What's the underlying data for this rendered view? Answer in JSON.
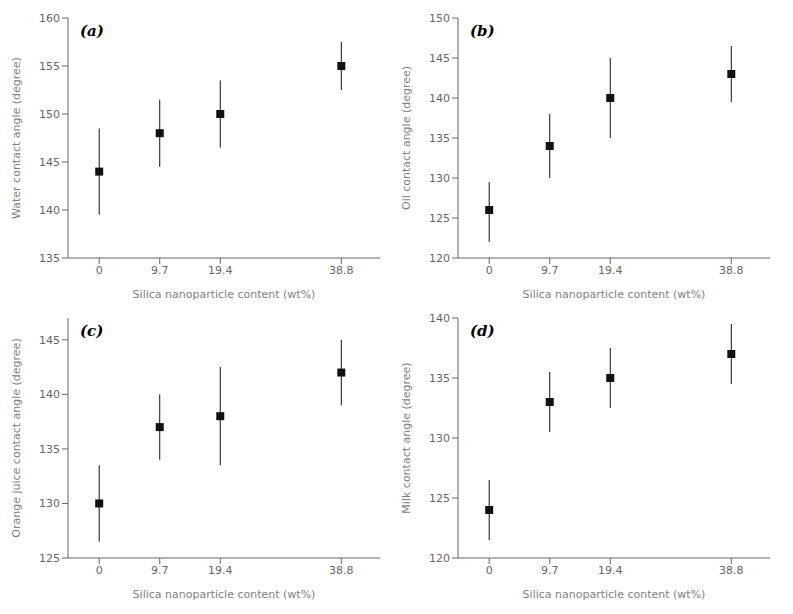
{
  "chart_data": [
    {
      "type": "scatter",
      "title": "(a)",
      "xlabel": "Silica nanoparticle content (wt%)",
      "ylabel": "Water contact angle (degree)",
      "x": [
        0,
        9.7,
        19.4,
        38.8
      ],
      "values": [
        144,
        148,
        150,
        155
      ],
      "errors_lo": [
        4.5,
        3.5,
        3.5,
        2.5
      ],
      "errors_hi": [
        4.5,
        3.5,
        3.5,
        2.5
      ],
      "xlim": [
        -5,
        45
      ],
      "xticks": [
        0,
        9.7,
        19.4,
        38.8
      ],
      "ylim": [
        135,
        160
      ],
      "yticks": [
        135,
        140,
        145,
        150,
        155,
        160
      ],
      "color": "#111111",
      "marker": "square",
      "grid": false
    },
    {
      "type": "scatter",
      "title": "(b)",
      "xlabel": "Silica nanoparticle content (wt%)",
      "ylabel": "Oil contact angle (degree)",
      "x": [
        0,
        9.7,
        19.4,
        38.8
      ],
      "values": [
        126,
        134,
        140,
        143
      ],
      "errors_lo": [
        4.0,
        4.0,
        5.0,
        3.5
      ],
      "errors_hi": [
        3.5,
        4.0,
        5.0,
        3.5
      ],
      "xlim": [
        -5,
        45
      ],
      "xticks": [
        0,
        9.7,
        19.4,
        38.8
      ],
      "ylim": [
        120,
        150
      ],
      "yticks": [
        120,
        125,
        130,
        135,
        140,
        145,
        150
      ],
      "color": "#111111",
      "marker": "square",
      "grid": false
    },
    {
      "type": "scatter",
      "title": "(c)",
      "xlabel": "Silica nanoparticle content (wt%)",
      "ylabel": "Orange juice contact angle (degree)",
      "x": [
        0,
        9.7,
        19.4,
        38.8
      ],
      "values": [
        130,
        137,
        138,
        142
      ],
      "errors_lo": [
        3.5,
        3.0,
        4.5,
        3.0
      ],
      "errors_hi": [
        3.5,
        3.0,
        4.5,
        3.0
      ],
      "xlim": [
        -5,
        45
      ],
      "xticks": [
        0,
        9.7,
        19.4,
        38.8
      ],
      "ylim": [
        125,
        147
      ],
      "yticks": [
        125,
        130,
        135,
        140,
        145
      ],
      "color": "#111111",
      "marker": "square",
      "grid": false
    },
    {
      "type": "scatter",
      "title": "(d)",
      "xlabel": "Silica nanoparticle content (wt%)",
      "ylabel": "Milk contact angle (degree)",
      "x": [
        0,
        9.7,
        19.4,
        38.8
      ],
      "values": [
        124,
        133,
        135,
        137
      ],
      "errors_lo": [
        2.5,
        2.5,
        2.5,
        2.5
      ],
      "errors_hi": [
        2.5,
        2.5,
        2.5,
        2.5
      ],
      "xlim": [
        -5,
        45
      ],
      "xticks": [
        0,
        9.7,
        19.4,
        38.8
      ],
      "ylim": [
        120,
        140
      ],
      "yticks": [
        120,
        125,
        130,
        135,
        140
      ],
      "color": "#111111",
      "marker": "square",
      "grid": false
    }
  ]
}
